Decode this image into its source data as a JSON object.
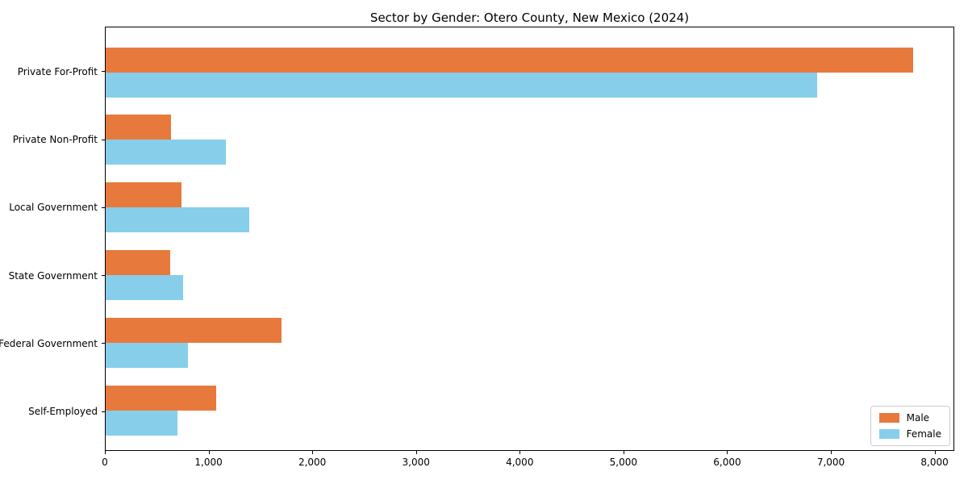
{
  "figure": {
    "background": "#ffffff"
  },
  "chart_data": {
    "type": "bar",
    "orientation": "horizontal",
    "title": "Sector by Gender: Otero County, New Mexico (2024)",
    "categories": [
      "Private For-Profit",
      "Private Non-Profit",
      "Local Government",
      "State Government",
      "Federal Government",
      "Self-Employed"
    ],
    "series": [
      {
        "name": "Male",
        "color": "#e8793d",
        "values": [
          7800,
          630,
          730,
          620,
          1700,
          1070
        ]
      },
      {
        "name": "Female",
        "color": "#87ceeb",
        "values": [
          6870,
          1160,
          1390,
          745,
          795,
          695
        ]
      }
    ],
    "xlabel": "",
    "ylabel": "",
    "xlim": [
      0,
      8190
    ],
    "xticks": [
      {
        "value": 0,
        "label": "0"
      },
      {
        "value": 1000,
        "label": "1,000"
      },
      {
        "value": 2000,
        "label": "2,000"
      },
      {
        "value": 3000,
        "label": "3,000"
      },
      {
        "value": 4000,
        "label": "4,000"
      },
      {
        "value": 5000,
        "label": "5,000"
      },
      {
        "value": 6000,
        "label": "6,000"
      },
      {
        "value": 7000,
        "label": "7,000"
      },
      {
        "value": 8000,
        "label": "8,000"
      }
    ],
    "grid": false,
    "legend": {
      "position": "lower right"
    },
    "axis_color": "#000000"
  }
}
